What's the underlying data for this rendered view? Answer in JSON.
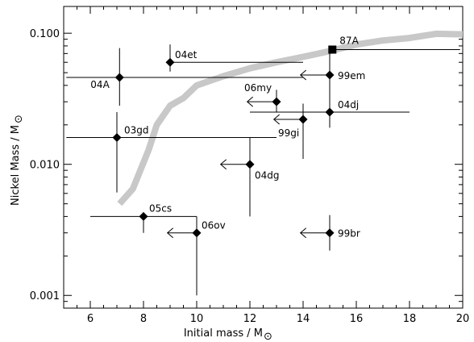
{
  "chart_data": {
    "type": "scatter",
    "title": "",
    "xlabel": "Initial mass / M",
    "ylabel": "Nickel Mass / M",
    "xlabel_symbol": "⊙",
    "ylabel_symbol": "⊙",
    "xlim": [
      5,
      20
    ],
    "ylim": [
      0.0008,
      0.16
    ],
    "yscale": "log",
    "grid": false,
    "legend": "none",
    "x_ticks": [
      6,
      8,
      10,
      12,
      14,
      16,
      18,
      20
    ],
    "y_ticks": [
      {
        "value": 0.001,
        "label": "0.001"
      },
      {
        "value": 0.01,
        "label": "0.010"
      },
      {
        "value": 0.1,
        "label": "0.100"
      }
    ],
    "model_curve": {
      "color": "#c8c8c8",
      "points": [
        [
          7.1,
          0.005
        ],
        [
          7.6,
          0.0065
        ],
        [
          8.2,
          0.013
        ],
        [
          8.5,
          0.02
        ],
        [
          9.0,
          0.028
        ],
        [
          9.5,
          0.032
        ],
        [
          10.0,
          0.04
        ],
        [
          11.0,
          0.047
        ],
        [
          12.0,
          0.054
        ],
        [
          13.0,
          0.06
        ],
        [
          14.0,
          0.066
        ],
        [
          15.0,
          0.073
        ],
        [
          16.0,
          0.082
        ],
        [
          17.0,
          0.088
        ],
        [
          18.0,
          0.092
        ],
        [
          19.0,
          0.099
        ],
        [
          20.0,
          0.098
        ]
      ]
    },
    "points": [
      {
        "label": "87A",
        "x": 15.1,
        "y": 0.075,
        "marker": "square",
        "xerr": [
          15.1,
          19.9
        ]
      },
      {
        "label": "04et",
        "x": 9.0,
        "y": 0.06,
        "marker": "diamond",
        "xerr": [
          9.0,
          14.0
        ],
        "yerr": [
          0.051,
          0.082
        ]
      },
      {
        "label": "04A",
        "x": 7.1,
        "y": 0.046,
        "marker": "diamond",
        "xerr": [
          5.1,
          14.0
        ],
        "yerr": [
          0.028,
          0.077
        ]
      },
      {
        "label": "99em",
        "x": 15.0,
        "y": 0.048,
        "marker": "diamond",
        "upper_limit": true,
        "arrow_to": 13.9,
        "yerr": [
          0.029,
          0.073
        ]
      },
      {
        "label": "06my",
        "x": 13.0,
        "y": 0.03,
        "marker": "diamond",
        "upper_limit": true,
        "arrow_to": 11.9,
        "yerr": [
          0.025,
          0.037
        ]
      },
      {
        "label": "04dj",
        "x": 15.0,
        "y": 0.025,
        "marker": "diamond",
        "xerr": [
          12.0,
          18.0
        ],
        "yerr": [
          0.019,
          0.032
        ]
      },
      {
        "label": "99gi",
        "x": 14.0,
        "y": 0.022,
        "marker": "diamond",
        "upper_limit": true,
        "arrow_to": 12.9,
        "yerr": [
          0.011,
          0.029
        ]
      },
      {
        "label": "03gd",
        "x": 7.0,
        "y": 0.016,
        "marker": "diamond",
        "xerr": [
          5.1,
          13.0
        ],
        "yerr": [
          0.0061,
          0.025
        ]
      },
      {
        "label": "04dg",
        "x": 12.0,
        "y": 0.01,
        "marker": "diamond",
        "upper_limit": true,
        "arrow_to": 10.9,
        "yerr": [
          0.004,
          0.016
        ]
      },
      {
        "label": "05cs",
        "x": 8.0,
        "y": 0.004,
        "marker": "diamond",
        "xerr": [
          6.0,
          10.0
        ],
        "yerr": [
          0.003,
          0.0043
        ]
      },
      {
        "label": "06ov",
        "x": 10.0,
        "y": 0.003,
        "marker": "diamond",
        "upper_limit": true,
        "arrow_to": 8.9,
        "yerr": [
          0.001,
          0.004
        ]
      },
      {
        "label": "99br",
        "x": 15.0,
        "y": 0.003,
        "marker": "diamond",
        "upper_limit": true,
        "arrow_to": 13.9,
        "yerr": [
          0.0022,
          0.0041
        ]
      }
    ],
    "label_offsets": {
      "87A": [
        9,
        -7
      ],
      "04et": [
        6,
        -5
      ],
      "04A": [
        -36,
        13
      ],
      "99em": [
        10,
        5
      ],
      "06my": [
        -40,
        -13
      ],
      "04dj": [
        10,
        -5
      ],
      "99gi": [
        -31,
        21
      ],
      "03gd": [
        9,
        -5
      ],
      "04dg": [
        6,
        18
      ],
      "05cs": [
        7,
        -6
      ],
      "06ov": [
        6,
        -5
      ],
      "99br": [
        10,
        5
      ]
    }
  }
}
